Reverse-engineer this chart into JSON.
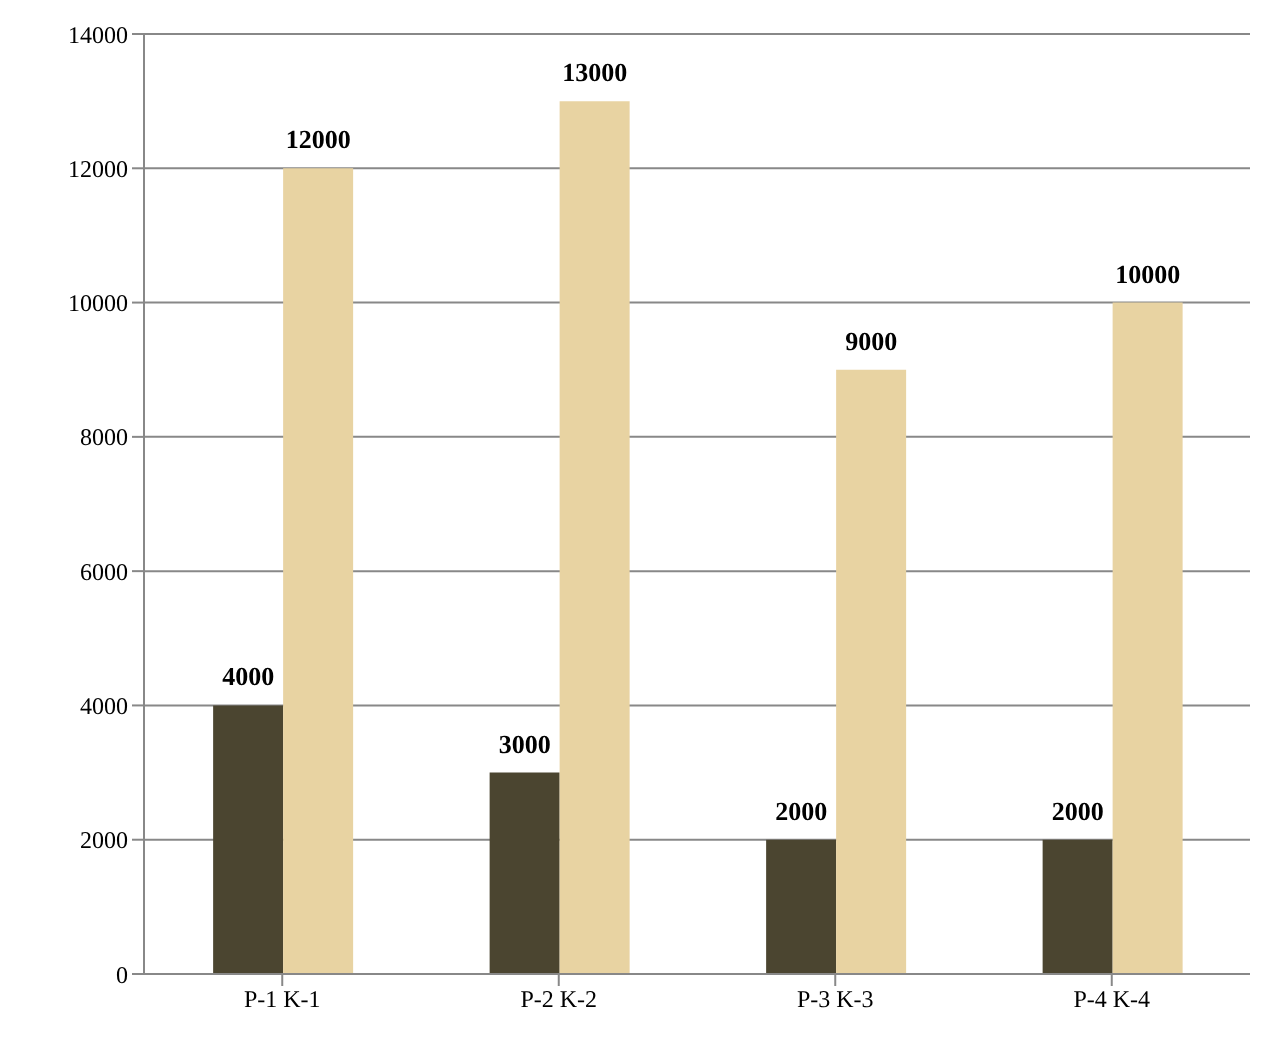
{
  "chart_data": {
    "type": "bar",
    "categories": [
      "P-1   K-1",
      "P-2   K-2",
      "P-3   K-3",
      "P-4   K-4"
    ],
    "series": [
      {
        "color": "#4b4530",
        "values": [
          4000,
          3000,
          2000,
          2000
        ]
      },
      {
        "color": "#e8d3a2",
        "values": [
          12000,
          13000,
          9000,
          10000
        ]
      }
    ],
    "ylim": [
      0,
      14000
    ],
    "yticks": [
      0,
      2000,
      4000,
      6000,
      8000,
      10000,
      12000,
      14000
    ],
    "grid": "y",
    "data_labels": true,
    "legend": false
  }
}
